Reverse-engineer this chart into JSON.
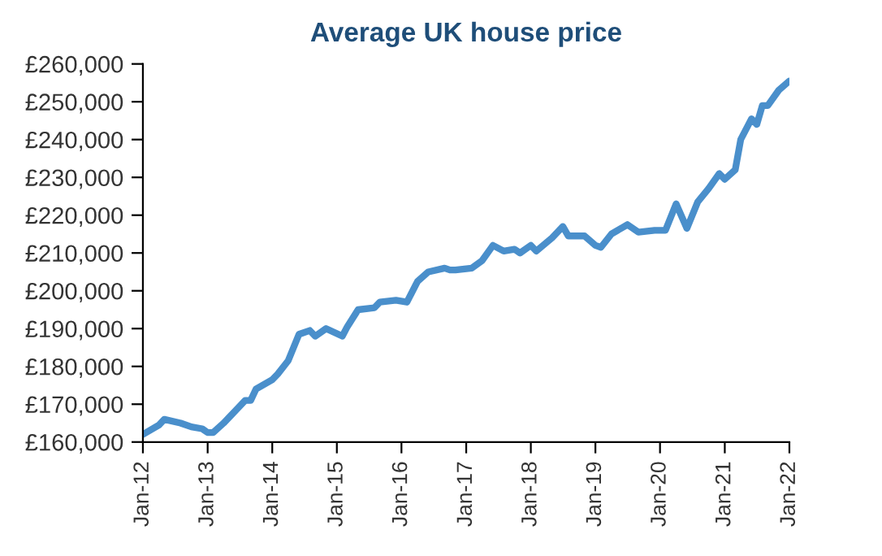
{
  "chart_data": {
    "type": "line",
    "title": "Average UK house price",
    "x": [
      "2012-01",
      "2012-04",
      "2012-05",
      "2012-08",
      "2012-10",
      "2012-12",
      "2013-01",
      "2013-02",
      "2013-04",
      "2013-06",
      "2013-08",
      "2013-09",
      "2013-10",
      "2014-01",
      "2014-02",
      "2014-04",
      "2014-06",
      "2014-08",
      "2014-09",
      "2014-11",
      "2015-02",
      "2015-03",
      "2015-05",
      "2015-08",
      "2015-09",
      "2015-12",
      "2016-02",
      "2016-04",
      "2016-06",
      "2016-09",
      "2016-10",
      "2016-11",
      "2017-02",
      "2017-04",
      "2017-06",
      "2017-08",
      "2017-10",
      "2017-11",
      "2018-01",
      "2018-02",
      "2018-05",
      "2018-07",
      "2018-08",
      "2018-11",
      "2019-01",
      "2019-02",
      "2019-04",
      "2019-07",
      "2019-09",
      "2019-12",
      "2020-02",
      "2020-04",
      "2020-06",
      "2020-08",
      "2020-10",
      "2020-12",
      "2021-01",
      "2021-03",
      "2021-04",
      "2021-06",
      "2021-07",
      "2021-08",
      "2021-09",
      "2021-11",
      "2022-01"
    ],
    "series": [
      {
        "color": "#4a8fcb",
        "values": [
          162000,
          164500,
          166000,
          165000,
          164000,
          163500,
          162500,
          162500,
          165000,
          168000,
          171000,
          171000,
          174000,
          176500,
          178000,
          181500,
          188500,
          189500,
          188000,
          190000,
          188000,
          190500,
          195000,
          195500,
          197000,
          197500,
          197000,
          202500,
          205000,
          206000,
          205500,
          205500,
          206000,
          208000,
          212000,
          210500,
          211000,
          210000,
          212000,
          210500,
          214000,
          217000,
          214500,
          214500,
          212000,
          211500,
          215000,
          217500,
          215500,
          216000,
          216000,
          223000,
          216500,
          223500,
          227000,
          231000,
          229500,
          232000,
          240000,
          245500,
          244000,
          249000,
          249000,
          253000,
          255500
        ]
      }
    ],
    "xlim": [
      "2012-01",
      "2022-01"
    ],
    "xticks": [
      {
        "value": "2012-01",
        "label": "Jan-12"
      },
      {
        "value": "2013-01",
        "label": "Jan-13"
      },
      {
        "value": "2014-01",
        "label": "Jan-14"
      },
      {
        "value": "2015-01",
        "label": "Jan-15"
      },
      {
        "value": "2016-01",
        "label": "Jan-16"
      },
      {
        "value": "2017-01",
        "label": "Jan-17"
      },
      {
        "value": "2018-01",
        "label": "Jan-18"
      },
      {
        "value": "2019-01",
        "label": "Jan-19"
      },
      {
        "value": "2020-01",
        "label": "Jan-20"
      },
      {
        "value": "2021-01",
        "label": "Jan-21"
      },
      {
        "value": "2022-01",
        "label": "Jan-22"
      }
    ],
    "ylim": [
      160000,
      260000
    ],
    "yticks": [
      {
        "value": 160000,
        "label": "£160,000"
      },
      {
        "value": 170000,
        "label": "£170,000"
      },
      {
        "value": 180000,
        "label": "£180,000"
      },
      {
        "value": 190000,
        "label": "£190,000"
      },
      {
        "value": 200000,
        "label": "£200,000"
      },
      {
        "value": 210000,
        "label": "£210,000"
      },
      {
        "value": 220000,
        "label": "£220,000"
      },
      {
        "value": 230000,
        "label": "£230,000"
      },
      {
        "value": 240000,
        "label": "£240,000"
      },
      {
        "value": 250000,
        "label": "£250,000"
      },
      {
        "value": 260000,
        "label": "£260,000"
      }
    ]
  }
}
